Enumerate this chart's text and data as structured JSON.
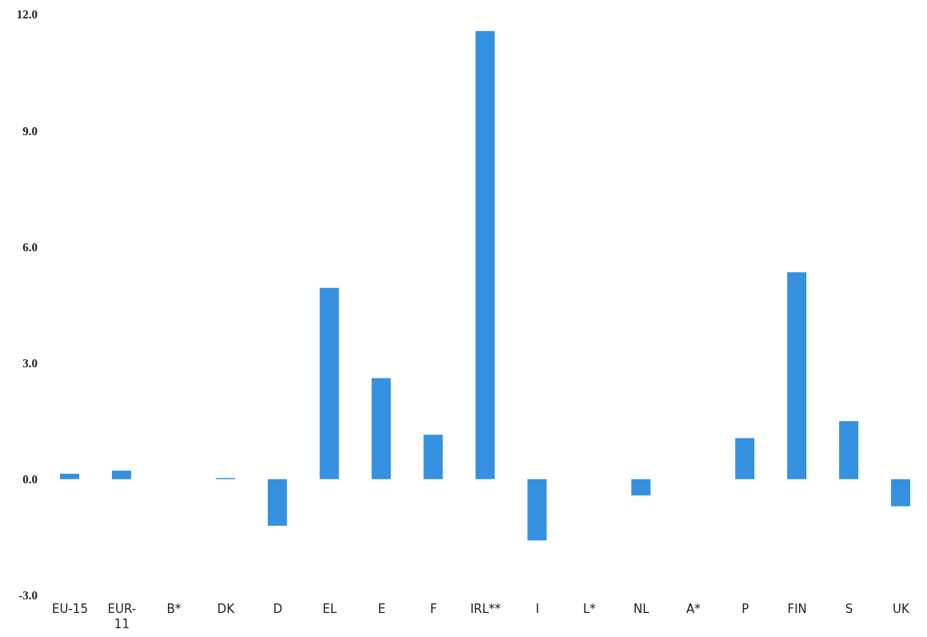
{
  "chart_data": {
    "type": "bar",
    "categories": [
      "EU-15",
      "EUR-11",
      "B*",
      "DK",
      "D",
      "EL",
      "E",
      "F",
      "IRL**",
      "I",
      "L*",
      "NL",
      "A*",
      "P",
      "FIN",
      "S",
      "UK"
    ],
    "values": [
      0.14,
      0.22,
      null,
      0.03,
      -1.2,
      4.94,
      2.61,
      1.15,
      11.57,
      -1.58,
      null,
      -0.42,
      null,
      1.06,
      5.34,
      1.5,
      -0.7
    ],
    "color": "#3590e0",
    "ylim": [
      -3,
      12
    ],
    "yticks": [
      {
        "value": -3,
        "label": "-3.0"
      },
      {
        "value": 0,
        "label": "0.0"
      },
      {
        "value": 3,
        "label": "3.0"
      },
      {
        "value": 6,
        "label": "6.0"
      },
      {
        "value": 9,
        "label": "9.0"
      },
      {
        "value": 12,
        "label": "12.0"
      }
    ],
    "grid": false
  }
}
